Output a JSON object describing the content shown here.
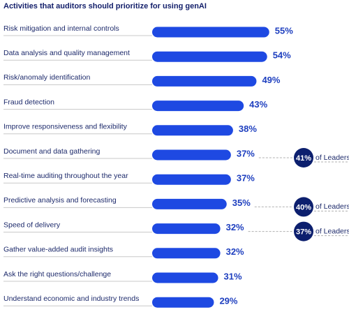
{
  "chart_data": {
    "type": "bar",
    "orientation": "horizontal",
    "title": "Activities that auditors should prioritize for using genAI",
    "categories": [
      "Risk mitigation and internal controls",
      "Data analysis and quality management",
      "Risk/anomaly identification",
      "Fraud detection",
      "Improve responsiveness and flexibility",
      "Document and data gathering",
      "Real-time auditing throughout the year",
      "Predictive analysis and forecasting",
      "Speed of delivery",
      "Gather value-added audit insights",
      "Ask the right questions/challenge",
      "Understand economic and industry trends"
    ],
    "values": [
      55,
      54,
      49,
      43,
      38,
      37,
      37,
      35,
      32,
      32,
      31,
      29
    ],
    "value_labels": [
      "55%",
      "54%",
      "49%",
      "43%",
      "38%",
      "37%",
      "37%",
      "35%",
      "32%",
      "32%",
      "31%",
      "29%"
    ],
    "color": "#1e49e2",
    "xlim": [
      0,
      80
    ],
    "leaders": {
      "name": "of Leaders",
      "color": "#0c1f6e",
      "values": [
        null,
        null,
        null,
        null,
        null,
        41,
        null,
        40,
        37,
        null,
        null,
        null
      ],
      "value_labels": [
        null,
        null,
        null,
        null,
        null,
        "41%",
        null,
        "40%",
        "37%",
        null,
        null,
        null
      ]
    }
  }
}
